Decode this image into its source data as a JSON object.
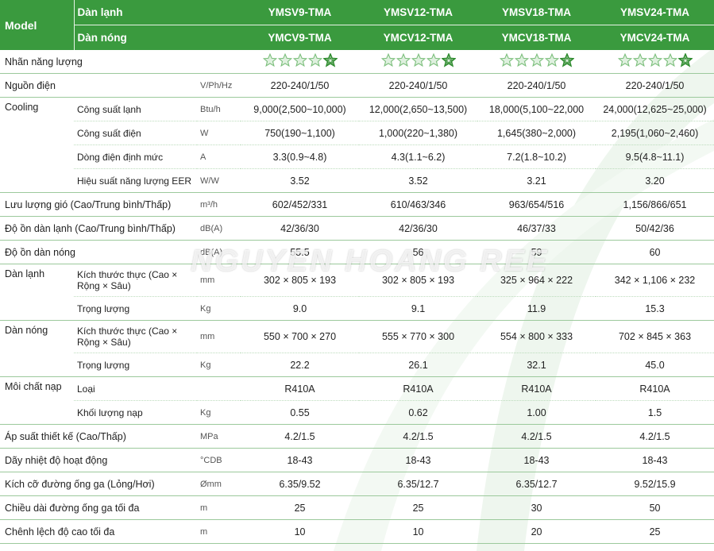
{
  "header": {
    "model_label": "Model",
    "indoor_label": "Dàn lạnh",
    "outdoor_label": "Dàn nóng",
    "indoor_models": [
      "YMSV9-TMA",
      "YMSV12-TMA",
      "YMSV18-TMA",
      "YMSV24-TMA"
    ],
    "outdoor_models": [
      "YMCV9-TMA",
      "YMCV12-TMA",
      "YMCV18-TMA",
      "YMCV24-TMA"
    ]
  },
  "energy": {
    "label": "Nhãn năng lượng",
    "stars": 5,
    "highlighted_star": 5,
    "star_fill": "#dff0df",
    "star_stroke": "#7cbf7c",
    "highlight_stroke": "#2e8b2e"
  },
  "rows": {
    "power": {
      "label": "Nguồn điện",
      "unit": "V/Ph/Hz",
      "values": [
        "220-240/1/50",
        "220-240/1/50",
        "220-240/1/50",
        "220-240/1/50"
      ]
    },
    "cooling": {
      "label": "Cooling",
      "capacity": {
        "label": "Công suất lạnh",
        "unit": "Btu/h",
        "values": [
          "9,000(2,500~10,000)",
          "12,000(2,650~13,500)",
          "18,000(5,100~22,000",
          "24,000(12,625~25,000)"
        ]
      },
      "power_input": {
        "label": "Công suất điện",
        "unit": "W",
        "values": [
          "750(190~1,100)",
          "1,000(220~1,380)",
          "1,645(380~2,000)",
          "2,195(1,060~2,460)"
        ]
      },
      "current": {
        "label": "Dòng điện định mức",
        "unit": "A",
        "values": [
          "3.3(0.9~4.8)",
          "4.3(1.1~6.2)",
          "7.2(1.8~10.2)",
          "9.5(4.8~11.1)"
        ]
      },
      "eer": {
        "label": "Hiệu suất năng lượng EER",
        "unit": "W/W",
        "values": [
          "3.52",
          "3.52",
          "3.21",
          "3.20"
        ]
      }
    },
    "airflow": {
      "label": "Lưu lượng gió (Cao/Trung bình/Thấp)",
      "unit": "m³/h",
      "values": [
        "602/452/331",
        "610/463/346",
        "963/654/516",
        "1,156/866/651"
      ]
    },
    "indoor_noise": {
      "label": "Độ ồn dàn lạnh (Cao/Trung bình/Thấp)",
      "unit": "dB(A)",
      "values": [
        "42/36/30",
        "42/36/30",
        "46/37/33",
        "50/42/36"
      ]
    },
    "outdoor_noise": {
      "label": "Độ ồn dàn nóng",
      "unit": "dB(A)",
      "values": [
        "55.5",
        "56",
        "59",
        "60"
      ]
    },
    "indoor_unit": {
      "label": "Dàn lạnh",
      "dims": {
        "label": "Kích thước thực (Cao × Rộng × Sâu)",
        "unit": "mm",
        "values": [
          "302 × 805 × 193",
          "302 × 805 × 193",
          "325 × 964 × 222",
          "342 × 1,106 × 232"
        ]
      },
      "weight": {
        "label": "Trọng lượng",
        "unit": "Kg",
        "values": [
          "9.0",
          "9.1",
          "11.9",
          "15.3"
        ]
      }
    },
    "outdoor_unit": {
      "label": "Dàn nóng",
      "dims": {
        "label": "Kích thước thực (Cao × Rộng × Sâu)",
        "unit": "mm",
        "values": [
          "550 × 700 × 270",
          "555 × 770 × 300",
          "554 × 800 × 333",
          "702 × 845 × 363"
        ]
      },
      "weight": {
        "label": "Trọng lượng",
        "unit": "Kg",
        "values": [
          "22.2",
          "26.1",
          "32.1",
          "45.0"
        ]
      }
    },
    "refrigerant": {
      "label": "Môi chất nạp",
      "type": {
        "label": "Loại",
        "unit": "",
        "values": [
          "R410A",
          "R410A",
          "R410A",
          "R410A"
        ]
      },
      "charge": {
        "label": "Khối lượng nạp",
        "unit": "Kg",
        "values": [
          "0.55",
          "0.62",
          "1.00",
          "1.5"
        ]
      }
    },
    "pressure": {
      "label": "Áp suất thiết kế (Cao/Thấp)",
      "unit": "MPa",
      "values": [
        "4.2/1.5",
        "4.2/1.5",
        "4.2/1.5",
        "4.2/1.5"
      ]
    },
    "temp_range": {
      "label": "Dãy nhiệt độ hoạt động",
      "unit": "°CDB",
      "values": [
        "18-43",
        "18-43",
        "18-43",
        "18-43"
      ]
    },
    "pipe": {
      "label": "Kích cỡ đường ống ga (Lỏng/Hơi)",
      "unit": "Ømm",
      "values": [
        "6.35/9.52",
        "6.35/12.7",
        "6.35/12.7",
        "9.52/15.9"
      ]
    },
    "pipe_len": {
      "label": "Chiều dài đường ống ga tối đa",
      "unit": "m",
      "values": [
        "25",
        "25",
        "30",
        "50"
      ]
    },
    "height_diff": {
      "label": "Chênh lệch độ cao tối đa",
      "unit": "m",
      "values": [
        "10",
        "10",
        "20",
        "25"
      ]
    }
  },
  "watermark": "NGUYEN HOANG REE"
}
